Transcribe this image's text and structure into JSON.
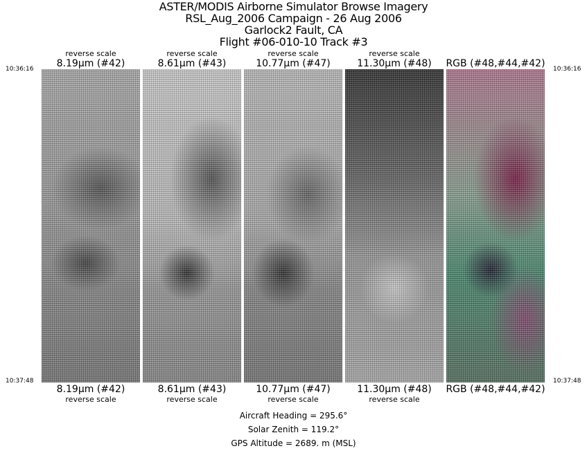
{
  "title": {
    "line1": "ASTER/MODIS Airborne Simulator Browse Imagery",
    "line2": "RSL_Aug_2006 Campaign - 26 Aug 2006",
    "line3": "Garlock2 Fault, CA",
    "line4": "Flight #06-010-10 Track #3"
  },
  "times": {
    "start": "10:36:16",
    "end": "10:37:48"
  },
  "panels": [
    {
      "scale": "reverse scale",
      "band": "8.19µm (#42)"
    },
    {
      "scale": "reverse scale",
      "band": "8.61µm (#43)"
    },
    {
      "scale": "reverse scale",
      "band": "10.77µm (#47)"
    },
    {
      "scale": "reverse scale",
      "band": "11.30µm (#48)"
    },
    {
      "scale": "",
      "band": "RGB (#48,#44,#42)"
    }
  ],
  "footer": {
    "heading": "Aircraft Heading =  295.6°",
    "zenith": "Solar Zenith =  119.2°",
    "altitude": "GPS Altitude =   2689. m (MSL)"
  }
}
